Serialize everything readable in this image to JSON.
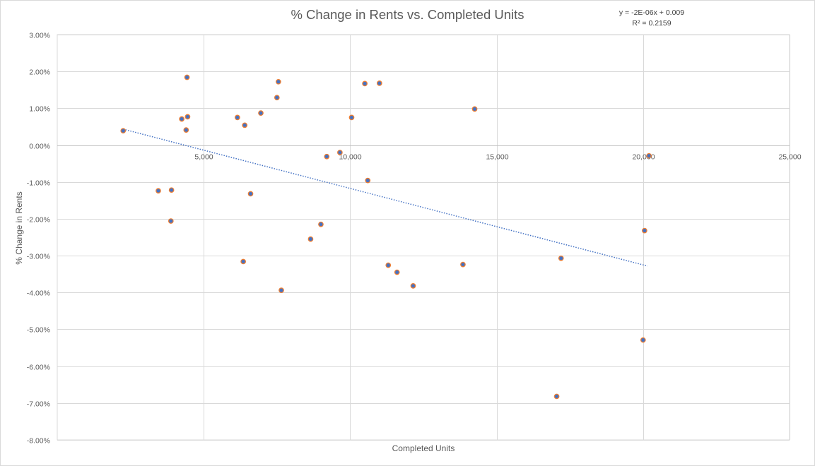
{
  "chart_data": {
    "type": "scatter",
    "title": "% Change in Rents vs. Completed Units",
    "xlabel": "Completed Units",
    "ylabel": "% Change in Rents",
    "xlim": [
      0,
      25000
    ],
    "ylim": [
      -0.08,
      0.03
    ],
    "x_ticks": [
      "5,000",
      "10,000",
      "15,000",
      "20,000",
      "25,000"
    ],
    "y_ticks": [
      "3.00%",
      "2.00%",
      "1.00%",
      "0.00%",
      "-1.00%",
      "-2.00%",
      "-3.00%",
      "-4.00%",
      "-5.00%",
      "-6.00%",
      "-7.00%",
      "-8.00%"
    ],
    "grid": true,
    "legend": "none",
    "marker_color": "#4472C4",
    "marker_edge_color": "#ED7D31",
    "trendline": {
      "type": "linear",
      "equation": "y = -2E-06x + 0.009",
      "r_squared": "R² = 0.2159",
      "x_start": 2250,
      "x_end": 20150,
      "color": "#4472C4"
    },
    "points": [
      {
        "x": 2250,
        "y": 0.0039
      },
      {
        "x": 3450,
        "y": -0.0124
      },
      {
        "x": 3900,
        "y": -0.0122
      },
      {
        "x": 3880,
        "y": -0.0206
      },
      {
        "x": 4250,
        "y": 0.0071
      },
      {
        "x": 4400,
        "y": 0.0041
      },
      {
        "x": 4430,
        "y": 0.0184
      },
      {
        "x": 4450,
        "y": 0.0077
      },
      {
        "x": 6150,
        "y": 0.0075
      },
      {
        "x": 6350,
        "y": -0.0316
      },
      {
        "x": 6400,
        "y": 0.0054
      },
      {
        "x": 6600,
        "y": -0.0132
      },
      {
        "x": 6950,
        "y": 0.0087
      },
      {
        "x": 7500,
        "y": 0.0129
      },
      {
        "x": 7550,
        "y": 0.0172
      },
      {
        "x": 7650,
        "y": -0.0394
      },
      {
        "x": 8650,
        "y": -0.0255
      },
      {
        "x": 9000,
        "y": -0.0215
      },
      {
        "x": 9200,
        "y": -0.0031
      },
      {
        "x": 9650,
        "y": -0.002
      },
      {
        "x": 10050,
        "y": 0.0075
      },
      {
        "x": 10500,
        "y": 0.0167
      },
      {
        "x": 10600,
        "y": -0.0096
      },
      {
        "x": 11000,
        "y": 0.0168
      },
      {
        "x": 11300,
        "y": -0.0326
      },
      {
        "x": 11600,
        "y": -0.0345
      },
      {
        "x": 12150,
        "y": -0.0382
      },
      {
        "x": 13850,
        "y": -0.0324
      },
      {
        "x": 14250,
        "y": 0.0098
      },
      {
        "x": 17050,
        "y": -0.0682
      },
      {
        "x": 17200,
        "y": -0.0307
      },
      {
        "x": 20000,
        "y": -0.0529
      },
      {
        "x": 20050,
        "y": -0.0232
      },
      {
        "x": 20200,
        "y": -0.0029
      }
    ]
  }
}
